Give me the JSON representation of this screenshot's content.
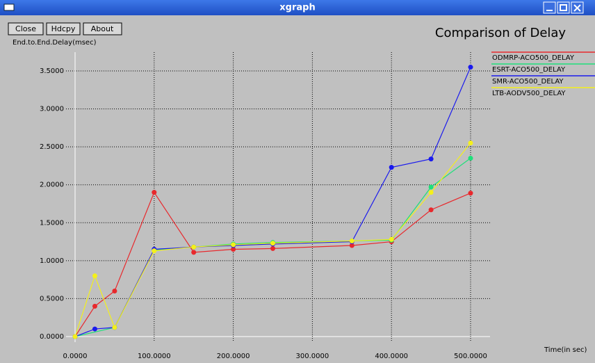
{
  "window": {
    "title": "xgraph",
    "buttons": [
      "Close",
      "Hdcpy",
      "About"
    ]
  },
  "chart_data": {
    "type": "line",
    "title": "Comparison of Delay",
    "y_label": "End.to.End.Delay(msec)",
    "x_label": "Time(in sec)",
    "xlim": [
      0,
      500
    ],
    "xticks": [
      {
        "value": 0,
        "label": "0.0000"
      },
      {
        "value": 100,
        "label": "100.0000"
      },
      {
        "value": 200,
        "label": "200.0000"
      },
      {
        "value": 300,
        "label": "300.0000"
      },
      {
        "value": 400,
        "label": "400.0000"
      },
      {
        "value": 500,
        "label": "500.0000"
      }
    ],
    "ylim": [
      0,
      3.5
    ],
    "yticks": [
      {
        "value": 0,
        "label": "0.0000"
      },
      {
        "value": 0.5,
        "label": "0.5000"
      },
      {
        "value": 1,
        "label": "1.0000"
      },
      {
        "value": 1.5,
        "label": "1.5000"
      },
      {
        "value": 2,
        "label": "2.0000"
      },
      {
        "value": 2.5,
        "label": "2.5000"
      },
      {
        "value": 3,
        "label": "3.0000"
      },
      {
        "value": 3.5,
        "label": "3.5000"
      }
    ],
    "grid": true,
    "series": [
      {
        "name": "ODMRP-ACO500_DELAY",
        "color": "#e8282c",
        "x": [
          0,
          25,
          50,
          100,
          150,
          200,
          250,
          350,
          400,
          450,
          500
        ],
        "values": [
          0,
          0.4,
          0.6,
          1.9,
          1.11,
          1.15,
          1.16,
          1.2,
          1.25,
          1.67,
          1.89
        ]
      },
      {
        "name": "ESRT-ACO500_DELAY",
        "color": "#1ee07a",
        "x": [
          0,
          50,
          100,
          150,
          200,
          250,
          350,
          400,
          450,
          500
        ],
        "values": [
          0,
          0.12,
          1.14,
          1.18,
          1.22,
          1.24,
          1.26,
          1.27,
          1.97,
          2.35
        ]
      },
      {
        "name": "SMR-ACO500_DELAY",
        "color": "#1a1aee",
        "x": [
          0,
          25,
          50,
          100,
          150,
          200,
          250,
          350,
          400,
          450,
          500
        ],
        "values": [
          0,
          0.1,
          0.12,
          1.15,
          1.18,
          1.2,
          1.22,
          1.25,
          2.23,
          2.34,
          3.55
        ]
      },
      {
        "name": "LTB-AODV500_DELAY",
        "color": "#f4f01a",
        "x": [
          0,
          25,
          50,
          100,
          150,
          200,
          250,
          350,
          400,
          450,
          500
        ],
        "values": [
          0,
          0.8,
          0.12,
          1.13,
          1.18,
          1.21,
          1.23,
          1.26,
          1.28,
          1.9,
          2.55
        ]
      }
    ]
  }
}
